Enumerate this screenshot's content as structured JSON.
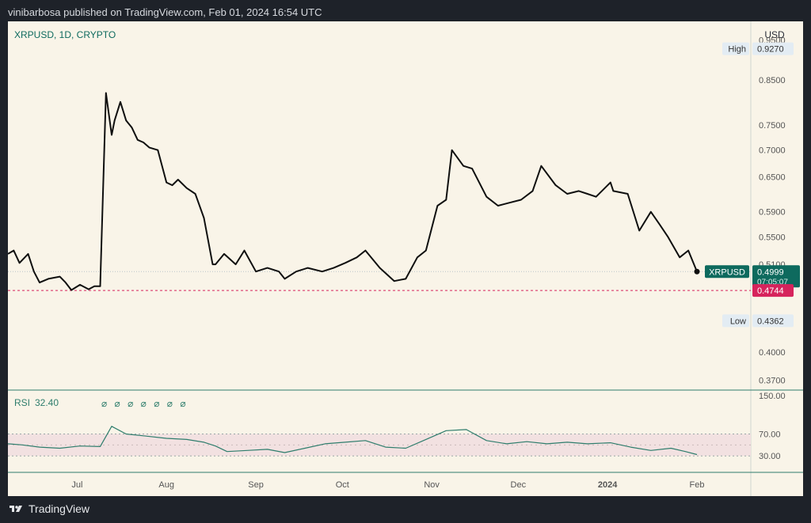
{
  "header": {
    "text": "vinibarbosa published on TradingView.com, Feb 01, 2024 16:54 UTC"
  },
  "footer": {
    "brand": "TradingView",
    "logo_icon": "tradingview-logo-icon"
  },
  "colors": {
    "background": "#f9f4e8",
    "line": "#0f0f0f",
    "accent": "#0e6a5e",
    "low_red": "#d6235c",
    "rsi_line": "#2e7d6c",
    "rsi_band": "#f2e1e1",
    "label_bg": "#e3ecf3"
  },
  "chart_data": [
    {
      "type": "line",
      "symbol_label": "XRPUSD, 1D, CRYPTO",
      "currency": "USD",
      "y_scale": "log",
      "ylim": [
        0.36,
        1.0
      ],
      "y_ticks": [
        "0.9500",
        "0.8500",
        "0.7500",
        "0.7000",
        "0.6500",
        "0.5900",
        "0.5500",
        "0.5100",
        "0.4000",
        "0.3700"
      ],
      "x_ticks": [
        "Jul",
        "Aug",
        "Sep",
        "Oct",
        "Nov",
        "Dec",
        "2024",
        "Feb"
      ],
      "x_start": "2023-06-07",
      "x_end": "2024-02-01",
      "x": [
        "2023-06-07",
        "2023-06-09",
        "2023-06-11",
        "2023-06-14",
        "2023-06-16",
        "2023-06-18",
        "2023-06-21",
        "2023-06-25",
        "2023-06-27",
        "2023-06-29",
        "2023-07-02",
        "2023-07-05",
        "2023-07-07",
        "2023-07-09",
        "2023-07-11",
        "2023-07-13",
        "2023-07-14",
        "2023-07-16",
        "2023-07-18",
        "2023-07-20",
        "2023-07-22",
        "2023-07-24",
        "2023-07-26",
        "2023-07-29",
        "2023-08-01",
        "2023-08-03",
        "2023-08-05",
        "2023-08-08",
        "2023-08-11",
        "2023-08-14",
        "2023-08-17",
        "2023-08-18",
        "2023-08-21",
        "2023-08-25",
        "2023-08-28",
        "2023-09-01",
        "2023-09-05",
        "2023-09-09",
        "2023-09-11",
        "2023-09-15",
        "2023-09-19",
        "2023-09-24",
        "2023-09-28",
        "2023-10-02",
        "2023-10-06",
        "2023-10-09",
        "2023-10-14",
        "2023-10-19",
        "2023-10-23",
        "2023-10-27",
        "2023-10-30",
        "2023-11-03",
        "2023-11-06",
        "2023-11-08",
        "2023-11-12",
        "2023-11-15",
        "2023-11-20",
        "2023-11-24",
        "2023-11-28",
        "2023-12-02",
        "2023-12-06",
        "2023-12-09",
        "2023-12-14",
        "2023-12-18",
        "2023-12-22",
        "2023-12-25",
        "2023-12-28",
        "2024-01-02",
        "2024-01-03",
        "2024-01-08",
        "2024-01-12",
        "2024-01-16",
        "2024-01-19",
        "2024-01-22",
        "2024-01-26",
        "2024-01-29",
        "2024-02-01"
      ],
      "series": [
        {
          "values": [
            0.525,
            0.53,
            0.512,
            0.525,
            0.5,
            0.485,
            0.49,
            0.493,
            0.485,
            0.475,
            0.482,
            0.476,
            0.48,
            0.48,
            0.82,
            0.73,
            0.76,
            0.8,
            0.76,
            0.745,
            0.72,
            0.715,
            0.705,
            0.7,
            0.64,
            0.635,
            0.645,
            0.63,
            0.62,
            0.58,
            0.51,
            0.51,
            0.525,
            0.51,
            0.53,
            0.5,
            0.505,
            0.5,
            0.49,
            0.5,
            0.505,
            0.5,
            0.505,
            0.512,
            0.52,
            0.53,
            0.505,
            0.487,
            0.49,
            0.52,
            0.53,
            0.6,
            0.61,
            0.7,
            0.67,
            0.665,
            0.615,
            0.6,
            0.605,
            0.61,
            0.625,
            0.67,
            0.635,
            0.62,
            0.625,
            0.62,
            0.615,
            0.64,
            0.625,
            0.62,
            0.56,
            0.59,
            0.57,
            0.55,
            0.52,
            0.53,
            0.4999
          ]
        }
      ],
      "last_value": "0.4999",
      "last_label": "XRPUSD",
      "countdown": "07:05:07",
      "high": {
        "label": "High",
        "value": "0.9270"
      },
      "low": {
        "label": "Low",
        "value": "0.4362"
      },
      "marker_value": "0.4744",
      "marker_numeric": 0.4744
    },
    {
      "type": "line",
      "title": "RSI",
      "last_value": "32.40",
      "markers": "⌀ ⌀ ⌀ ⌀ ⌀ ⌀ ⌀",
      "ylim": [
        0,
        150
      ],
      "y_ticks": [
        "150.00",
        "70.00",
        "30.00"
      ],
      "band": [
        30,
        70
      ],
      "midline": 50,
      "x_start": "2023-06-07",
      "x_end": "2024-02-01",
      "x": [
        "2023-06-07",
        "2023-06-12",
        "2023-06-18",
        "2023-06-25",
        "2023-07-02",
        "2023-07-09",
        "2023-07-13",
        "2023-07-18",
        "2023-07-25",
        "2023-08-01",
        "2023-08-08",
        "2023-08-14",
        "2023-08-18",
        "2023-08-22",
        "2023-08-29",
        "2023-09-05",
        "2023-09-11",
        "2023-09-18",
        "2023-09-25",
        "2023-10-02",
        "2023-10-09",
        "2023-10-16",
        "2023-10-23",
        "2023-10-30",
        "2023-11-06",
        "2023-11-13",
        "2023-11-20",
        "2023-11-27",
        "2023-12-04",
        "2023-12-11",
        "2023-12-18",
        "2023-12-25",
        "2024-01-02",
        "2024-01-09",
        "2024-01-16",
        "2024-01-23",
        "2024-01-28",
        "2024-02-01"
      ],
      "series": [
        {
          "values": [
            52,
            50,
            46,
            44,
            48,
            47,
            84,
            70,
            66,
            62,
            60,
            55,
            48,
            38,
            40,
            42,
            36,
            44,
            52,
            55,
            58,
            46,
            44,
            60,
            76,
            78,
            58,
            52,
            56,
            52,
            55,
            52,
            54,
            46,
            40,
            44,
            38,
            32.4
          ]
        }
      ]
    }
  ]
}
